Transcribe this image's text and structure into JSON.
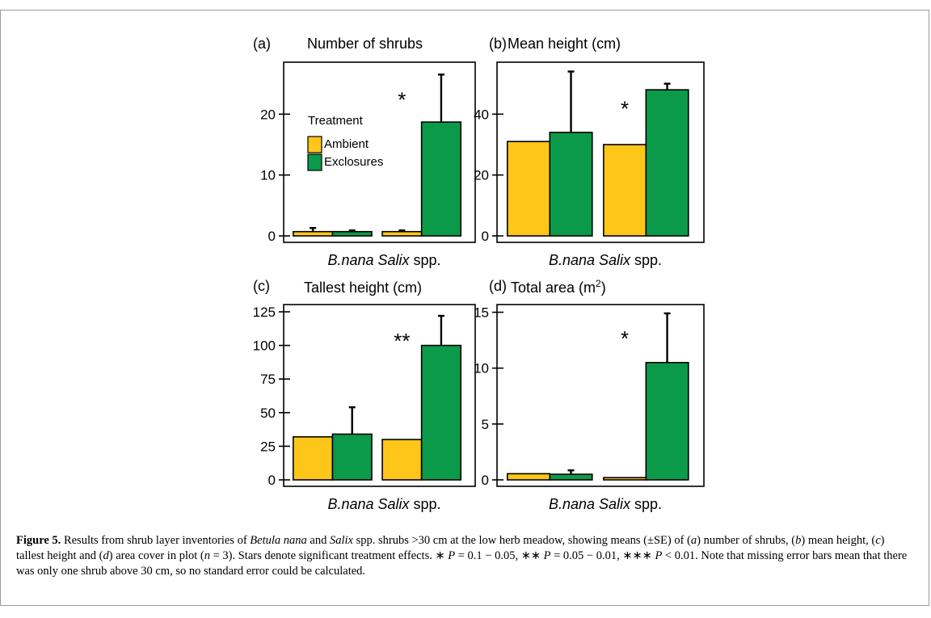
{
  "figure": {
    "caption": {
      "label": "Figure 5.",
      "p1": "Results from shrub layer inventories of",
      "g1": "Betula nana",
      "p2": "and",
      "g2": "Salix",
      "p3": "spp. shrubs >30 cm at the low herb meadow, showing means (±SE) of (",
      "pa": "a",
      "p4": ") number of shrubs, (",
      "pb": "b",
      "p5": ") mean height, (",
      "pc": "c",
      "p6": ") tallest height and (",
      "pd": "d",
      "p7": ") area cover in plot (",
      "nv": "n",
      "p8": " = 3). Stars denote significant treatment effects. ∗ ",
      "P1": "P",
      "p9": " = 0.1 − 0.05, ∗∗ ",
      "P2": "P",
      "p10": " = 0.05 − 0.01, ∗∗∗ ",
      "P3": "P",
      "p11": " < 0.01. Note that missing error bars mean that there was only one shrub above 30 cm, so no standard error could be calculated."
    }
  },
  "colors": {
    "ambient": "#FFC61A",
    "exclosures": "#0B9A4A",
    "stroke": "#000000"
  },
  "chart_data": [
    {
      "type": "bar",
      "panel": "(a)",
      "title": "Number of shrubs",
      "categories": [
        "B.nana",
        "Salix spp."
      ],
      "category_parts": [
        {
          "text": "B.nana",
          "italic": true
        },
        {
          "text": " "
        },
        {
          "text": "Salix",
          "italic": true
        },
        {
          "text": " spp."
        }
      ],
      "series": [
        {
          "name": "Ambient",
          "values": [
            0.7,
            0.7
          ],
          "err": [
            1.3,
            0.9
          ]
        },
        {
          "name": "Exclosures",
          "values": [
            0.7,
            18.7
          ],
          "err": [
            0.9,
            26.5
          ]
        }
      ],
      "ylim": [
        0,
        28
      ],
      "yticks": [
        0,
        10,
        20
      ],
      "annotations": [
        "",
        "*"
      ],
      "legend": {
        "title": "Treatment",
        "items": [
          "Ambient",
          "Exclosures"
        ],
        "placement": "top-left"
      }
    },
    {
      "type": "bar",
      "panel": "(b)",
      "title": "Mean height (cm)",
      "categories": [
        "B.nana",
        "Salix spp."
      ],
      "category_parts": [
        {
          "text": "B.nana",
          "italic": true
        },
        {
          "text": " "
        },
        {
          "text": "Salix",
          "italic": true
        },
        {
          "text": " spp."
        }
      ],
      "series": [
        {
          "name": "Ambient",
          "values": [
            31,
            30
          ],
          "err": [
            null,
            null
          ]
        },
        {
          "name": "Exclosures",
          "values": [
            34,
            48
          ],
          "err": [
            54,
            50
          ]
        }
      ],
      "ylim": [
        0,
        56
      ],
      "yticks": [
        0,
        20,
        40
      ],
      "annotations": [
        "",
        "*"
      ]
    },
    {
      "type": "bar",
      "panel": "(c)",
      "title": "Tallest height (cm)",
      "categories": [
        "B.nana",
        "Salix spp."
      ],
      "category_parts": [
        {
          "text": "B.nana",
          "italic": true
        },
        {
          "text": " "
        },
        {
          "text": "Salix",
          "italic": true
        },
        {
          "text": " spp."
        }
      ],
      "series": [
        {
          "name": "Ambient",
          "values": [
            32,
            30
          ],
          "err": [
            null,
            null
          ]
        },
        {
          "name": "Exclosures",
          "values": [
            34,
            100
          ],
          "err": [
            54,
            122
          ]
        }
      ],
      "ylim": [
        0,
        128
      ],
      "yticks": [
        0,
        25,
        50,
        75,
        100,
        125
      ],
      "annotations": [
        "",
        "**"
      ]
    },
    {
      "type": "bar",
      "panel": "(d)",
      "title": "Total area",
      "title_unit": "(m",
      "title_sup": "2",
      "title_close": ")",
      "categories": [
        "B.nana",
        "Salix spp."
      ],
      "category_parts": [
        {
          "text": "B.nana",
          "italic": true
        },
        {
          "text": " "
        },
        {
          "text": "Salix",
          "italic": true
        },
        {
          "text": " spp."
        }
      ],
      "series": [
        {
          "name": "Ambient",
          "values": [
            0.55,
            0.2
          ],
          "err": [
            null,
            null
          ]
        },
        {
          "name": "Exclosures",
          "values": [
            0.5,
            10.5
          ],
          "err": [
            0.85,
            14.9
          ]
        }
      ],
      "ylim": [
        0,
        15.4
      ],
      "yticks": [
        0,
        5,
        10,
        15
      ],
      "annotations": [
        "",
        "*"
      ]
    }
  ]
}
